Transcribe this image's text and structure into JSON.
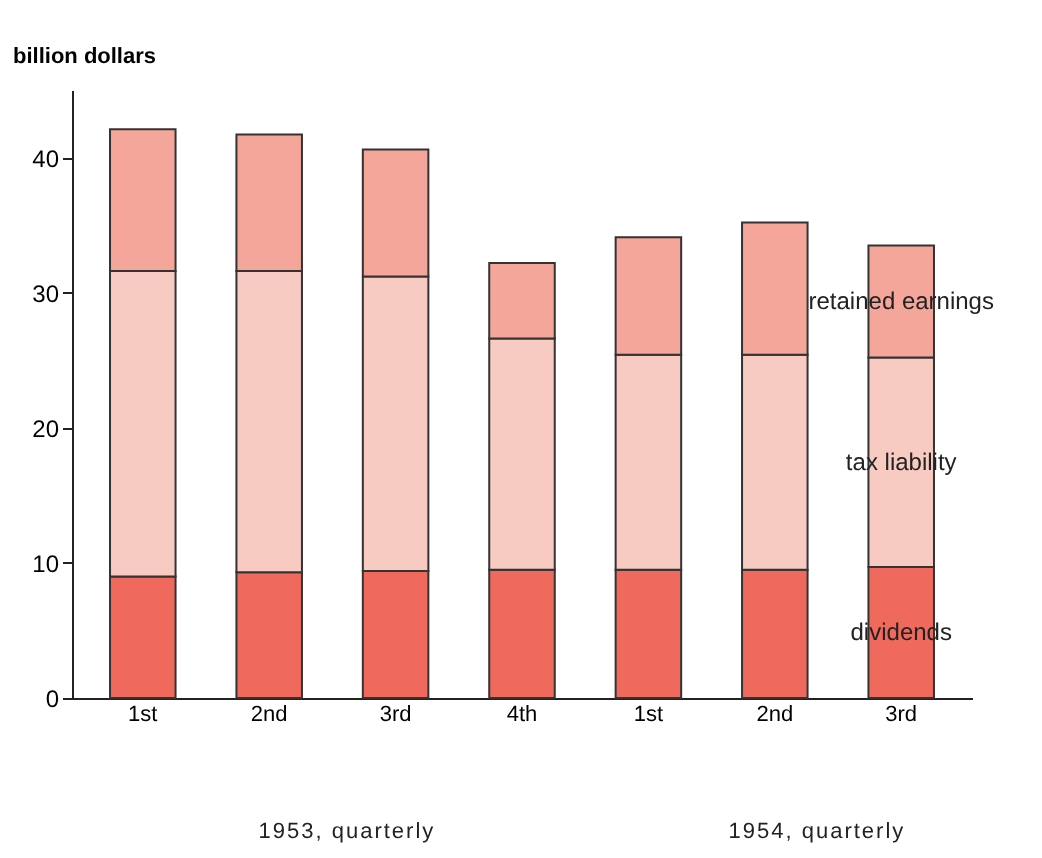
{
  "chart_data": {
    "type": "bar",
    "stacked": true,
    "ylabel": "billion dollars",
    "categories": [
      "1st",
      "2nd",
      "3rd",
      "4th",
      "1st",
      "2nd",
      "3rd"
    ],
    "series": [
      {
        "name": "dividends",
        "color": "#ef6a5c",
        "values": [
          9.0,
          9.3,
          9.4,
          9.5,
          9.5,
          9.5,
          9.7
        ]
      },
      {
        "name": "tax liability",
        "color": "#f8cbc2",
        "values": [
          22.6,
          22.3,
          21.8,
          17.1,
          15.9,
          15.9,
          15.5
        ]
      },
      {
        "name": "retained earnings",
        "color": "#f4a69b",
        "values": [
          10.5,
          10.1,
          9.4,
          5.6,
          8.7,
          9.8,
          8.3
        ]
      }
    ],
    "ylim": [
      0,
      45
    ],
    "yticks": [
      0,
      10,
      20,
      30,
      40
    ],
    "grid": false,
    "legend": false,
    "annotations": [
      "1953, quarterly",
      "1954, quarterly"
    ]
  }
}
